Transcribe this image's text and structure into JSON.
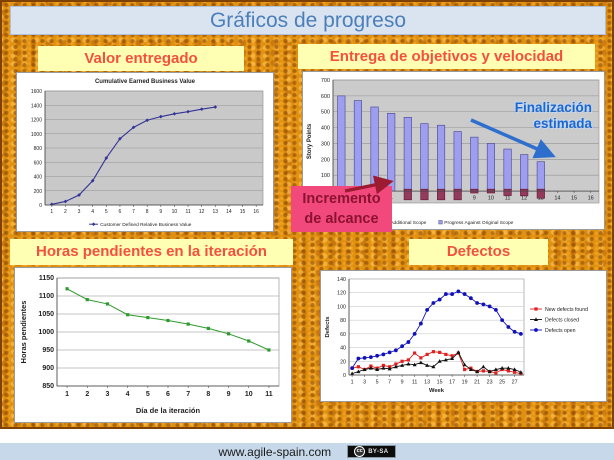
{
  "slide": {
    "title": "Gráficos de progreso"
  },
  "panels": {
    "valor": {
      "label": "Valor entregado"
    },
    "objetivos": {
      "label": "Entrega de objetivos y velocidad"
    },
    "horas": {
      "label": "Horas pendientes en la iteración"
    },
    "defectos": {
      "label": "Defectos"
    }
  },
  "annotations": {
    "finalizacion_line1": "Finalización",
    "finalizacion_line2": "estimada",
    "incremento_line1": "Incremento",
    "incremento_line2": "de alcance"
  },
  "footer": {
    "url": "www.agile-spain.com",
    "cc_symbol": "cc",
    "license": "BY-SA"
  },
  "colors": {
    "slide_background": "#e0900f",
    "title_banner_bg": "#dae4f1",
    "title_text": "#4b7fb9",
    "panel_label_bg": "#ffffb4",
    "panel_label_text": "#f4503d",
    "estimate_annotation_blue": "#1d66cc",
    "scope_annotation_pink": "#f2497d",
    "scope_annotation_text": "#8c1230",
    "scope_arrow_red": "#9c1b31",
    "footer_strip": "#c6d8ea"
  },
  "chart_data": [
    {
      "id": "ebv",
      "type": "line",
      "title": "Cumulative Earned Business Value",
      "categories": [
        1,
        2,
        3,
        4,
        5,
        6,
        7,
        8,
        9,
        10,
        11,
        12,
        13,
        14,
        15,
        16
      ],
      "ylim": [
        0,
        1600
      ],
      "yticks": [
        0,
        200,
        400,
        600,
        800,
        1000,
        1200,
        1400,
        1600
      ],
      "legend": "bottom",
      "series": [
        {
          "name": "Customer Defined Relative Business Value",
          "color": "#333399",
          "marker": "diamond",
          "values": [
            10,
            50,
            140,
            340,
            660,
            930,
            1090,
            1190,
            1240,
            1280,
            1310,
            1345,
            1375,
            null,
            null,
            null
          ]
        }
      ]
    },
    {
      "id": "velocity",
      "type": "bar",
      "categories": [
        1,
        2,
        3,
        4,
        5,
        6,
        7,
        8,
        9,
        10,
        11,
        12,
        13,
        14,
        15,
        16
      ],
      "ylabel": "Story Points",
      "ylim": [
        -75,
        700
      ],
      "yticks": [
        0,
        100,
        200,
        300,
        400,
        500,
        600,
        700
      ],
      "legend": "bottom",
      "series": [
        {
          "name": "Additional Scope",
          "color": "#943a5d",
          "border": "#5e1632",
          "values": [
            null,
            null,
            null,
            null,
            -55,
            -55,
            -55,
            -55,
            -12,
            -12,
            -28,
            -30,
            -45,
            null,
            null,
            null
          ]
        },
        {
          "name": "Progress Against Original Scope",
          "color": "#9e9ef0",
          "border": "#44448c",
          "values": [
            600,
            570,
            530,
            490,
            465,
            425,
            415,
            375,
            340,
            300,
            265,
            230,
            185,
            null,
            null,
            null
          ]
        }
      ]
    },
    {
      "id": "burndown",
      "type": "line",
      "categories": [
        1,
        2,
        3,
        4,
        5,
        6,
        7,
        8,
        9,
        10,
        11
      ],
      "xlabel": "Día de la iteración",
      "ylabel": "Horas pendientes",
      "ylim": [
        850,
        1150
      ],
      "yticks": [
        850,
        900,
        950,
        1000,
        1050,
        1100,
        1150
      ],
      "series": [
        {
          "name": "Horas pendientes",
          "color": "#2e9b2e",
          "marker": "square",
          "values": [
            1120,
            1090,
            1078,
            1048,
            1040,
            1032,
            1022,
            1010,
            995,
            975,
            950
          ]
        }
      ]
    },
    {
      "id": "defects",
      "type": "line",
      "categories": [
        1,
        2,
        3,
        4,
        5,
        6,
        7,
        8,
        9,
        10,
        11,
        12,
        13,
        14,
        15,
        16,
        17,
        18,
        19,
        20,
        21,
        22,
        23,
        24,
        25,
        26,
        27,
        28
      ],
      "xticks": [
        1,
        3,
        5,
        7,
        9,
        11,
        13,
        15,
        17,
        19,
        21,
        23,
        25,
        27
      ],
      "xlabel": "Week",
      "ylabel": "Defects",
      "ylim": [
        0,
        140
      ],
      "yticks": [
        0,
        20,
        40,
        60,
        80,
        100,
        120,
        140
      ],
      "legend": "right",
      "series": [
        {
          "name": "New defects found",
          "color": "#dd2222",
          "marker": "square",
          "values": [
            10,
            12,
            8,
            13,
            10,
            14,
            12,
            16,
            20,
            22,
            32,
            25,
            30,
            34,
            33,
            30,
            28,
            32,
            8,
            10,
            5,
            6,
            5,
            3,
            8,
            6,
            4,
            2
          ]
        },
        {
          "name": "Defects closed",
          "color": "#111111",
          "marker": "triangle",
          "values": [
            2,
            5,
            8,
            10,
            8,
            10,
            9,
            12,
            14,
            16,
            15,
            18,
            14,
            12,
            20,
            22,
            24,
            33,
            15,
            8,
            5,
            12,
            5,
            8,
            10,
            10,
            8,
            4
          ]
        },
        {
          "name": "Defects open",
          "color": "#1111bb",
          "marker": "circle",
          "values": [
            10,
            24,
            25,
            26,
            28,
            30,
            33,
            36,
            42,
            48,
            60,
            75,
            95,
            105,
            110,
            118,
            118,
            122,
            118,
            112,
            105,
            103,
            100,
            95,
            80,
            70,
            63,
            60
          ]
        }
      ]
    }
  ]
}
